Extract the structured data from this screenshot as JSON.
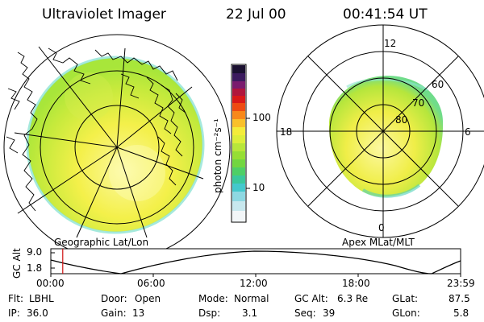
{
  "header": {
    "title": "Ultraviolet Imager",
    "date": "22 Jul 00",
    "time": "00:41:54 UT"
  },
  "colorbar": {
    "unit": "photon cm⁻²s⁻¹",
    "ticks": [
      "100",
      "10"
    ]
  },
  "left_map": {
    "caption": "Geographic Lat/Lon"
  },
  "right_map": {
    "caption": "Apex MLat/MLT",
    "mlt_labels": {
      "top": "12",
      "left": "18",
      "right": "6",
      "bottom": "0"
    },
    "lat_labels": [
      "60",
      "70",
      "80"
    ]
  },
  "altitude_plot": {
    "ylabel": "GC Alt",
    "yticks": [
      "9.0",
      "1.8"
    ],
    "xticks": [
      "00:00",
      "06:00",
      "12:00",
      "18:00",
      "23:59"
    ],
    "marker_time": "00:41:54"
  },
  "info": {
    "flt_label": "Flt:",
    "flt_value": "LBHL",
    "ip_label": "IP:",
    "ip_value": "36.0",
    "door_label": "Door:",
    "door_value": "Open",
    "gain_label": "Gain:",
    "gain_value": "13",
    "mode_label": "Mode:",
    "mode_value": "Normal",
    "dsp_label": "Dsp:",
    "dsp_value": "3.1",
    "gcalt_label": "GC Alt:",
    "gcalt_value": "6.3 Re",
    "seq_label": "Seq:",
    "seq_value": "39",
    "glat_label": "GLat:",
    "glat_value": "87.5",
    "glon_label": "GLon:",
    "glon_value": "5.8"
  },
  "colors": {
    "aurora_yellow": "#f4f04a",
    "aurora_green": "#a8e63a",
    "aurora_cyan": "#5fd6c8",
    "cursor_red": "#d01010"
  }
}
